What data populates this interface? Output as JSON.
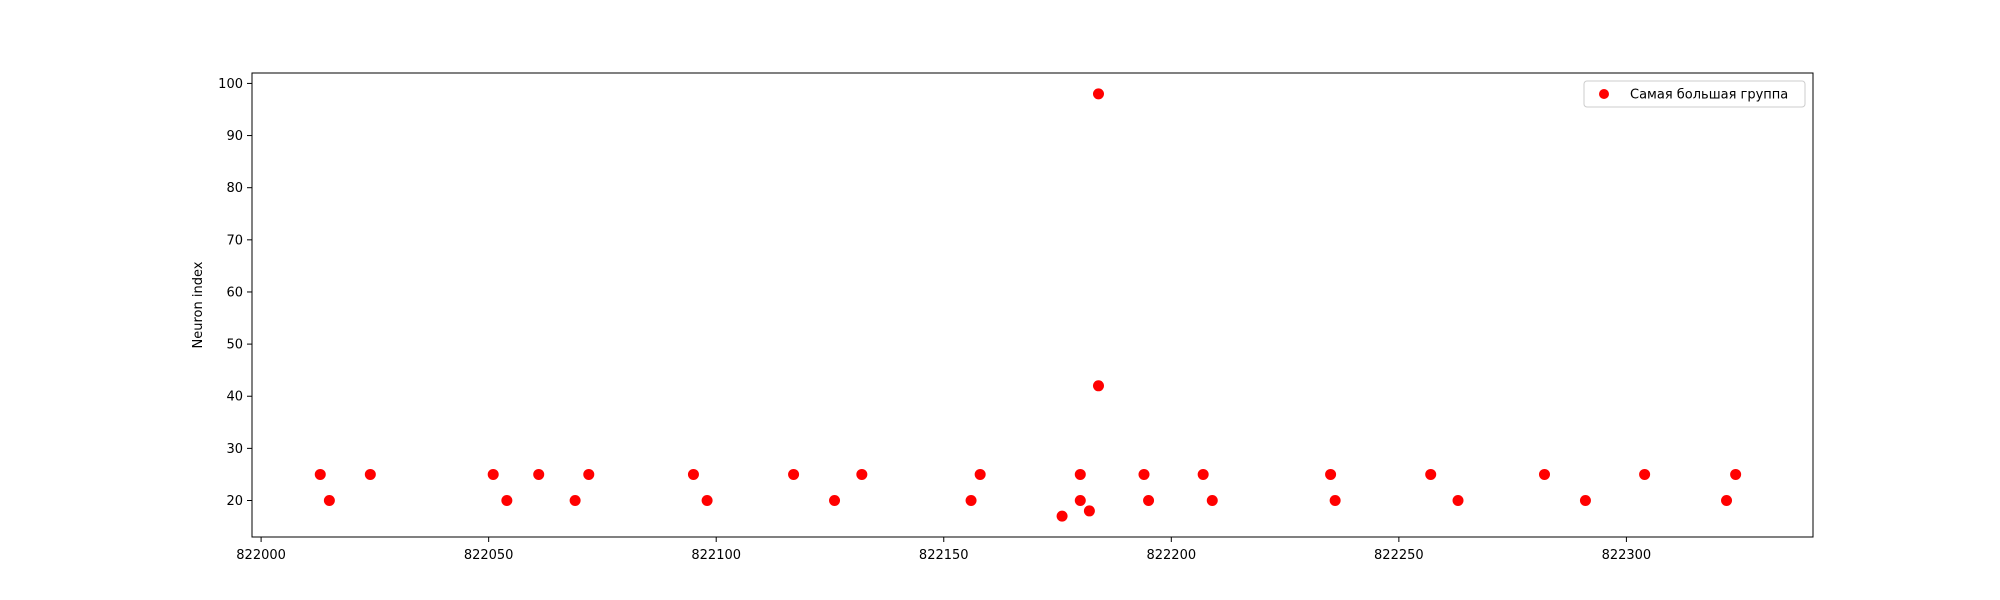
{
  "chart_data": {
    "type": "scatter",
    "xlabel": "",
    "ylabel": "Neuron index",
    "xlim": [
      821998,
      822341
    ],
    "ylim": [
      13,
      102
    ],
    "xticks": [
      822000,
      822050,
      822100,
      822150,
      822200,
      822250,
      822300
    ],
    "yticks": [
      20,
      30,
      40,
      50,
      60,
      70,
      80,
      90,
      100
    ],
    "grid": false,
    "legend_position": "top-right",
    "series": [
      {
        "name": "Самая большая группа",
        "color": "#ff0000",
        "points": [
          [
            822013,
            25
          ],
          [
            822015,
            20
          ],
          [
            822024,
            25
          ],
          [
            822051,
            25
          ],
          [
            822054,
            20
          ],
          [
            822061,
            25
          ],
          [
            822069,
            20
          ],
          [
            822072,
            25
          ],
          [
            822095,
            25
          ],
          [
            822098,
            20
          ],
          [
            822117,
            25
          ],
          [
            822126,
            20
          ],
          [
            822132,
            25
          ],
          [
            822156,
            20
          ],
          [
            822158,
            25
          ],
          [
            822176,
            17
          ],
          [
            822180,
            25
          ],
          [
            822180,
            20
          ],
          [
            822182,
            18
          ],
          [
            822184,
            42
          ],
          [
            822184,
            98
          ],
          [
            822194,
            25
          ],
          [
            822195,
            20
          ],
          [
            822207,
            25
          ],
          [
            822209,
            20
          ],
          [
            822235,
            25
          ],
          [
            822236,
            20
          ],
          [
            822257,
            25
          ],
          [
            822263,
            20
          ],
          [
            822282,
            25
          ],
          [
            822291,
            20
          ],
          [
            822304,
            25
          ],
          [
            822322,
            20
          ],
          [
            822324,
            25
          ]
        ]
      }
    ]
  }
}
